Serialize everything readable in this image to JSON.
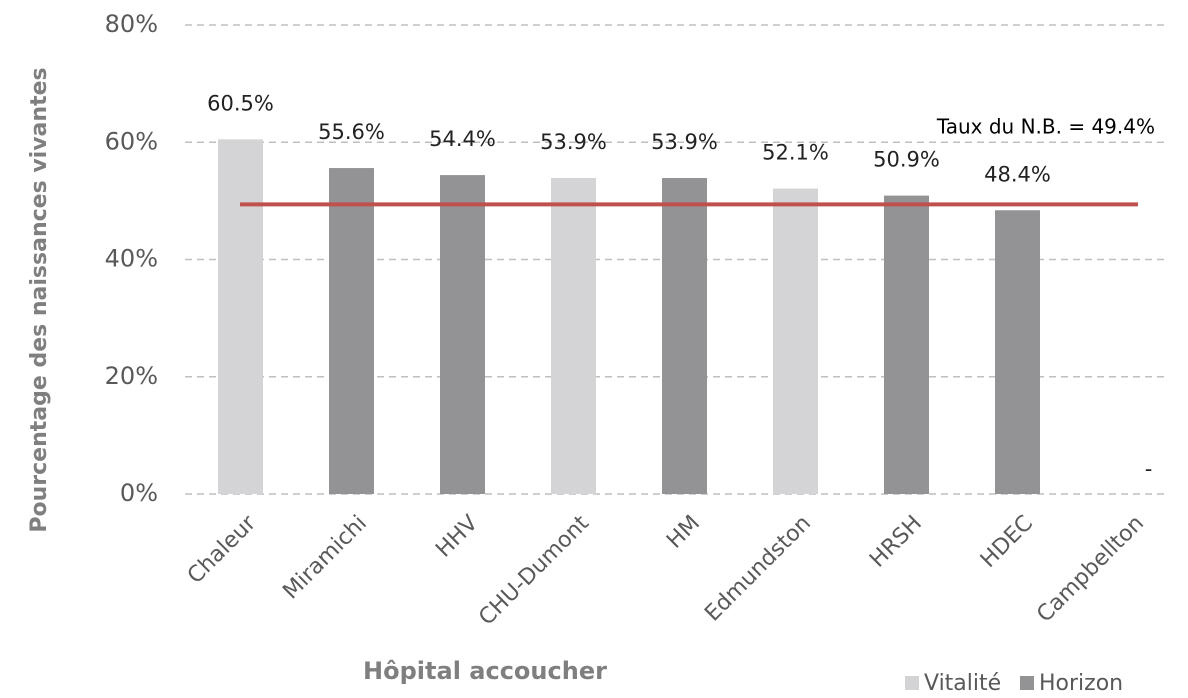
{
  "chart_data": {
    "type": "bar",
    "x_label": "Hôpital accoucher",
    "y_label": "Pourcentage des naissances vivantes",
    "categories": [
      "Chaleur",
      "Miramichi",
      "HHV",
      "CHU-Dumont",
      "HM",
      "Edmundston",
      "HRSH",
      "HDEC",
      "Campbellton"
    ],
    "series": [
      {
        "name": "Vitalité",
        "color": "#d4d4d6",
        "values": [
          60.5,
          null,
          null,
          53.9,
          null,
          52.1,
          null,
          null,
          null
        ],
        "value_labels": [
          "60.5%",
          null,
          null,
          "53.9%",
          null,
          "52.1%",
          null,
          null,
          "-"
        ]
      },
      {
        "name": "Horizon",
        "color": "#939396",
        "values": [
          null,
          55.6,
          54.4,
          null,
          53.9,
          null,
          50.9,
          48.4,
          null
        ],
        "value_labels": [
          null,
          "55.6%",
          "54.4%",
          null,
          "53.9%",
          null,
          "50.9%",
          "48.4%",
          null
        ]
      }
    ],
    "reference_line": {
      "value": 49.4,
      "label": "Taux du N.B. = 49.4%",
      "color": "#c0504d"
    },
    "ylim": [
      0,
      80
    ],
    "yticks": [
      {
        "value": 0,
        "label": "0%"
      },
      {
        "value": 20,
        "label": "20%"
      },
      {
        "value": 40,
        "label": "40%"
      },
      {
        "value": 60,
        "label": "60%"
      },
      {
        "value": 80,
        "label": "80%"
      }
    ],
    "grid": true,
    "legend": "bottom-right"
  }
}
